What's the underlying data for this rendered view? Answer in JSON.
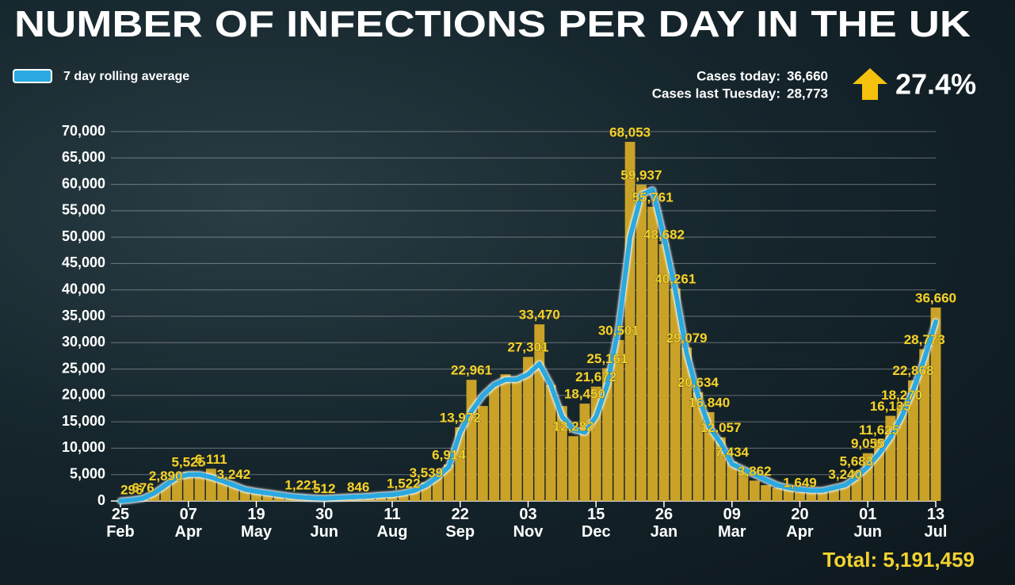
{
  "chart_data": {
    "type": "bar",
    "title": "NUMBER OF INFECTIONS PER DAY IN THE UK",
    "stats": [
      {
        "label": "Cases today:",
        "value": "36,660"
      },
      {
        "label": "Cases last  Tuesday:",
        "value": "28,773"
      }
    ],
    "change": "27.4%",
    "total": "Total: 5,191,459",
    "categories": [
      "25 Feb",
      null,
      null,
      null,
      null,
      null,
      "07 Apr",
      null,
      null,
      null,
      null,
      null,
      "19 May",
      null,
      null,
      null,
      null,
      null,
      "30 Jun",
      null,
      null,
      null,
      null,
      null,
      "11 Aug",
      null,
      null,
      null,
      null,
      null,
      "22 Sep",
      null,
      null,
      null,
      null,
      null,
      "03 Nov",
      null,
      null,
      null,
      null,
      null,
      "15 Dec",
      null,
      null,
      null,
      null,
      null,
      "26 Jan",
      null,
      null,
      null,
      null,
      null,
      "09 Mar",
      null,
      null,
      null,
      null,
      null,
      "20 Apr",
      null,
      null,
      null,
      null,
      null,
      "01 Jun",
      null,
      null,
      null,
      null,
      null,
      "13 Jul"
    ],
    "series": [
      {
        "color": "#c9a227",
        "values": [
          50,
          296,
          676,
          1500,
          2890,
          4500,
          5525,
          5000,
          6111,
          4200,
          3242,
          2500,
          2000,
          1500,
          1300,
          1000,
          1221,
          800,
          512,
          600,
          700,
          846,
          900,
          1100,
          1200,
          1522,
          2000,
          3539,
          4500,
          6914,
          13972,
          22961,
          18000,
          22000,
          24000,
          23000,
          27301,
          33470,
          22000,
          18000,
          12282,
          18450,
          21672,
          25161,
          30501,
          68053,
          59937,
          55761,
          48682,
          40261,
          29079,
          20634,
          16840,
          12057,
          7434,
          6000,
          3862,
          3000,
          2500,
          2200,
          1649,
          2000,
          2300,
          2600,
          3240,
          5683,
          9055,
          11625,
          16135,
          18270,
          22868,
          28773,
          36660
        ],
        "value_labels": [
          null,
          "296",
          "676",
          null,
          "2,890",
          null,
          "5,525",
          null,
          "6,111",
          null,
          "3,242",
          null,
          null,
          null,
          null,
          null,
          "1,221",
          null,
          "512",
          null,
          null,
          "846",
          null,
          null,
          null,
          "1,522",
          null,
          "3,539",
          null,
          "6,914",
          "13,972",
          "22,961",
          null,
          null,
          null,
          null,
          "27,301",
          "33,470",
          null,
          null,
          "12,282",
          "18,450",
          "21,672",
          "25,161",
          "30,501",
          "68,053",
          "59,937",
          "55,761",
          "48,682",
          "40,261",
          "29,079",
          "20,634",
          "16,840",
          "12,057",
          "7,434",
          null,
          "3,862",
          null,
          null,
          null,
          "1,649",
          null,
          null,
          null,
          "3,240",
          "5,683",
          "9,055",
          "11,625",
          "16,135",
          "18,270",
          "22,868",
          "28,773",
          "36,660"
        ]
      },
      {
        "name": "7 day rolling average",
        "type": "line",
        "color": "#2aa9e0",
        "values": [
          0,
          200,
          500,
          1500,
          3000,
          4500,
          5000,
          5000,
          4500,
          3800,
          3000,
          2200,
          1800,
          1500,
          1200,
          900,
          700,
          550,
          500,
          600,
          700,
          800,
          900,
          1100,
          1200,
          1500,
          2000,
          3000,
          4500,
          6500,
          13000,
          17000,
          20000,
          22000,
          23000,
          23000,
          24000,
          26000,
          22000,
          16000,
          13500,
          13000,
          16000,
          22000,
          33000,
          50000,
          58000,
          59000,
          50000,
          40000,
          28000,
          20000,
          14000,
          11000,
          7000,
          6000,
          5000,
          4000,
          3000,
          2500,
          2200,
          2000,
          2000,
          2500,
          3000,
          4500,
          6500,
          9000,
          12000,
          16000,
          21000,
          27000,
          34000
        ]
      }
    ],
    "ylim": [
      0,
      70000
    ],
    "yticks": [
      0,
      {
        "value": 5000,
        "label": "5,000"
      },
      {
        "value": 10000,
        "label": "10,000"
      },
      {
        "value": 15000,
        "label": "15,000"
      },
      {
        "value": 20000,
        "label": "20,000"
      },
      {
        "value": 25000,
        "label": "25,000"
      },
      {
        "value": 30000,
        "label": "30,000"
      },
      {
        "value": 35000,
        "label": "35,000"
      },
      {
        "value": 40000,
        "label": "40,000"
      },
      {
        "value": 45000,
        "label": "45,000"
      },
      {
        "value": 50000,
        "label": "50,000"
      },
      {
        "value": 55000,
        "label": "55,000"
      },
      {
        "value": 60000,
        "label": "60,000"
      },
      {
        "value": 65000,
        "label": "65,000"
      },
      {
        "value": 70000,
        "label": "70,000"
      }
    ],
    "grid": true
  }
}
